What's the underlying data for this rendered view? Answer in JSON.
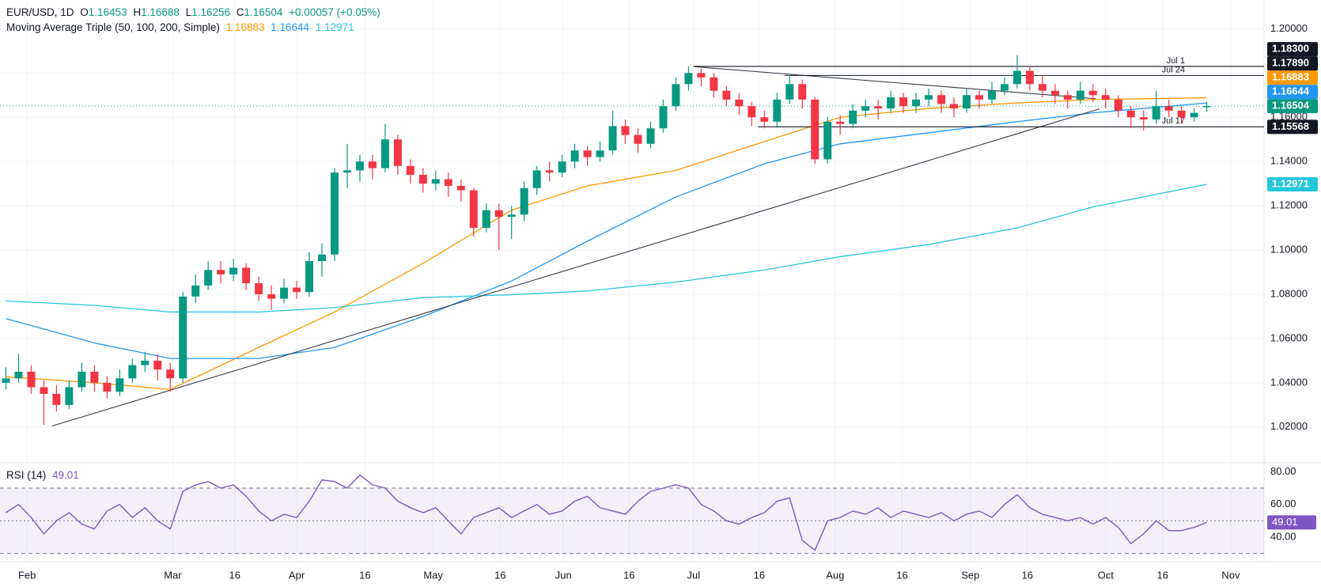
{
  "chart_data": {
    "type": "candlestick",
    "header": {
      "symbol": "EUR/USD, 1D",
      "o": "O",
      "h": "H",
      "l": "L",
      "c": "C",
      "change": "+0.00057 (+0.05%)"
    },
    "up_color": "#089981",
    "down_color": "#f23645",
    "ohlc": [
      [
        1.04,
        1.047,
        1.037,
        1.042
      ],
      [
        1.042,
        1.053,
        1.04,
        1.045
      ],
      [
        1.045,
        1.048,
        1.035,
        1.038
      ],
      [
        1.038,
        1.041,
        1.021,
        1.035
      ],
      [
        1.035,
        1.039,
        1.027,
        1.03
      ],
      [
        1.03,
        1.041,
        1.028,
        1.038
      ],
      [
        1.038,
        1.049,
        1.036,
        1.045
      ],
      [
        1.045,
        1.048,
        1.036,
        1.04
      ],
      [
        1.04,
        1.043,
        1.033,
        1.036
      ],
      [
        1.036,
        1.046,
        1.034,
        1.042
      ],
      [
        1.042,
        1.051,
        1.04,
        1.048
      ],
      [
        1.048,
        1.054,
        1.045,
        1.05
      ],
      [
        1.05,
        1.053,
        1.041,
        1.046
      ],
      [
        1.046,
        1.049,
        1.036,
        1.042
      ],
      [
        1.042,
        1.081,
        1.04,
        1.079
      ],
      [
        1.079,
        1.089,
        1.076,
        1.084
      ],
      [
        1.084,
        1.095,
        1.082,
        1.091
      ],
      [
        1.091,
        1.095,
        1.085,
        1.089
      ],
      [
        1.089,
        1.096,
        1.086,
        1.092
      ],
      [
        1.092,
        1.094,
        1.082,
        1.085
      ],
      [
        1.085,
        1.088,
        1.077,
        1.08
      ],
      [
        1.08,
        1.084,
        1.073,
        1.078
      ],
      [
        1.078,
        1.087,
        1.076,
        1.083
      ],
      [
        1.083,
        1.086,
        1.078,
        1.081
      ],
      [
        1.081,
        1.099,
        1.079,
        1.095
      ],
      [
        1.095,
        1.103,
        1.088,
        1.098
      ],
      [
        1.098,
        1.137,
        1.095,
        1.135
      ],
      [
        1.135,
        1.148,
        1.128,
        1.136
      ],
      [
        1.136,
        1.143,
        1.131,
        1.14
      ],
      [
        1.14,
        1.143,
        1.132,
        1.137
      ],
      [
        1.137,
        1.157,
        1.135,
        1.15
      ],
      [
        1.15,
        1.152,
        1.134,
        1.138
      ],
      [
        1.138,
        1.141,
        1.13,
        1.134
      ],
      [
        1.134,
        1.137,
        1.126,
        1.13
      ],
      [
        1.13,
        1.136,
        1.127,
        1.132
      ],
      [
        1.132,
        1.135,
        1.124,
        1.129
      ],
      [
        1.129,
        1.132,
        1.122,
        1.127
      ],
      [
        1.127,
        1.128,
        1.106,
        1.11
      ],
      [
        1.11,
        1.121,
        1.108,
        1.118
      ],
      [
        1.118,
        1.121,
        1.1,
        1.115
      ],
      [
        1.115,
        1.12,
        1.105,
        1.116
      ],
      [
        1.116,
        1.131,
        1.113,
        1.128
      ],
      [
        1.128,
        1.138,
        1.125,
        1.136
      ],
      [
        1.136,
        1.14,
        1.131,
        1.135
      ],
      [
        1.135,
        1.143,
        1.133,
        1.14
      ],
      [
        1.14,
        1.148,
        1.137,
        1.145
      ],
      [
        1.145,
        1.147,
        1.138,
        1.142
      ],
      [
        1.142,
        1.149,
        1.14,
        1.145
      ],
      [
        1.145,
        1.163,
        1.143,
        1.156
      ],
      [
        1.156,
        1.159,
        1.148,
        1.152
      ],
      [
        1.152,
        1.155,
        1.144,
        1.148
      ],
      [
        1.148,
        1.158,
        1.146,
        1.155
      ],
      [
        1.155,
        1.168,
        1.153,
        1.165
      ],
      [
        1.165,
        1.178,
        1.163,
        1.175
      ],
      [
        1.175,
        1.183,
        1.172,
        1.18
      ],
      [
        1.18,
        1.182,
        1.174,
        1.178
      ],
      [
        1.178,
        1.18,
        1.169,
        1.172
      ],
      [
        1.172,
        1.174,
        1.165,
        1.168
      ],
      [
        1.168,
        1.171,
        1.161,
        1.165
      ],
      [
        1.165,
        1.167,
        1.156,
        1.16
      ],
      [
        1.16,
        1.163,
        1.155,
        1.158
      ],
      [
        1.158,
        1.171,
        1.156,
        1.168
      ],
      [
        1.168,
        1.179,
        1.166,
        1.175
      ],
      [
        1.175,
        1.177,
        1.164,
        1.168
      ],
      [
        1.168,
        1.169,
        1.139,
        1.141
      ],
      [
        1.141,
        1.16,
        1.139,
        1.158
      ],
      [
        1.158,
        1.161,
        1.152,
        1.157
      ],
      [
        1.157,
        1.166,
        1.155,
        1.163
      ],
      [
        1.163,
        1.168,
        1.16,
        1.165
      ],
      [
        1.165,
        1.168,
        1.159,
        1.164
      ],
      [
        1.164,
        1.172,
        1.162,
        1.169
      ],
      [
        1.169,
        1.171,
        1.162,
        1.165
      ],
      [
        1.165,
        1.171,
        1.162,
        1.168
      ],
      [
        1.168,
        1.173,
        1.165,
        1.17
      ],
      [
        1.17,
        1.172,
        1.162,
        1.166
      ],
      [
        1.166,
        1.169,
        1.16,
        1.164
      ],
      [
        1.164,
        1.173,
        1.162,
        1.17
      ],
      [
        1.17,
        1.172,
        1.164,
        1.168
      ],
      [
        1.168,
        1.176,
        1.166,
        1.172
      ],
      [
        1.172,
        1.178,
        1.17,
        1.175
      ],
      [
        1.175,
        1.188,
        1.173,
        1.181
      ],
      [
        1.181,
        1.183,
        1.172,
        1.175
      ],
      [
        1.175,
        1.179,
        1.169,
        1.172
      ],
      [
        1.172,
        1.175,
        1.166,
        1.17
      ],
      [
        1.17,
        1.172,
        1.164,
        1.168
      ],
      [
        1.168,
        1.176,
        1.166,
        1.172
      ],
      [
        1.172,
        1.175,
        1.167,
        1.17
      ],
      [
        1.17,
        1.173,
        1.164,
        1.168
      ],
      [
        1.168,
        1.17,
        1.16,
        1.163
      ],
      [
        1.163,
        1.165,
        1.155,
        1.16
      ],
      [
        1.16,
        1.163,
        1.154,
        1.159
      ],
      [
        1.159,
        1.172,
        1.157,
        1.165
      ],
      [
        1.165,
        1.168,
        1.16,
        1.163
      ],
      [
        1.163,
        1.165,
        1.157,
        1.16
      ],
      [
        1.16,
        1.164,
        1.158,
        1.162
      ],
      [
        1.16453,
        1.16688,
        1.16256,
        1.16504
      ]
    ],
    "xlim": [
      -0.47,
      99.53
    ],
    "xticks": [
      {
        "value": 1.67,
        "label": "Feb"
      },
      {
        "value": 13.2,
        "label": "Mar"
      },
      {
        "value": 18.1,
        "label": "16"
      },
      {
        "value": 23,
        "label": "Apr"
      },
      {
        "value": 28.4,
        "label": "16"
      },
      {
        "value": 33.8,
        "label": "May"
      },
      {
        "value": 39.1,
        "label": "16"
      },
      {
        "value": 44.1,
        "label": "Jun"
      },
      {
        "value": 49.3,
        "label": "16"
      },
      {
        "value": 54.4,
        "label": "Jul"
      },
      {
        "value": 59.6,
        "label": "16"
      },
      {
        "value": 65.6,
        "label": "Aug"
      },
      {
        "value": 70.9,
        "label": "16"
      },
      {
        "value": 76.3,
        "label": "Sep"
      },
      {
        "value": 80.8,
        "label": "16"
      },
      {
        "value": 87,
        "label": "Oct"
      },
      {
        "value": 91.5,
        "label": "16"
      },
      {
        "value": 96.9,
        "label": "Nov"
      }
    ],
    "ylim": [
      1.0042,
      1.213
    ],
    "yticks": [
      {
        "value": 1.02,
        "label": "1.02000"
      },
      {
        "value": 1.04,
        "label": "1.04000"
      },
      {
        "value": 1.06,
        "label": "1.06000"
      },
      {
        "value": 1.08,
        "label": "1.08000"
      },
      {
        "value": 1.1,
        "label": "1.10000"
      },
      {
        "value": 1.12,
        "label": "1.12000"
      },
      {
        "value": 1.14,
        "label": "1.14000"
      },
      {
        "value": 1.16,
        "label": "1.16000"
      },
      {
        "value": 1.18,
        "label": "1.18000"
      },
      {
        "value": 1.2,
        "label": "1.20000"
      }
    ],
    "grid": true,
    "moving_averages": {
      "title": "Moving Average Triple (50, 100, 200, Simple)",
      "series": [
        {
          "color": "#ff9800",
          "x": [
            0,
            7,
            13,
            20,
            26,
            33,
            40,
            46,
            53,
            60,
            66,
            73,
            80,
            86,
            95
          ],
          "values": [
            1.0427,
            1.04,
            1.037,
            1.056,
            1.072,
            1.094,
            1.118,
            1.129,
            1.136,
            1.149,
            1.16,
            1.164,
            1.1665,
            1.168,
            1.16883
          ]
        },
        {
          "color": "#2196f3",
          "x": [
            0,
            7,
            13,
            20,
            26,
            33,
            40,
            46,
            53,
            60,
            66,
            73,
            80,
            86,
            95
          ],
          "values": [
            1.069,
            1.058,
            1.051,
            1.051,
            1.056,
            1.07,
            1.086,
            1.104,
            1.124,
            1.139,
            1.148,
            1.153,
            1.158,
            1.162,
            1.16644
          ]
        },
        {
          "color": "#26c6da",
          "x": [
            0,
            7,
            13,
            20,
            26,
            33,
            40,
            46,
            53,
            60,
            66,
            73,
            80,
            86,
            95
          ],
          "values": [
            1.077,
            1.075,
            1.072,
            1.072,
            1.074,
            1.0785,
            1.0798,
            1.0815,
            1.0855,
            1.091,
            1.097,
            1.1025,
            1.11,
            1.1195,
            1.12971
          ]
        }
      ]
    },
    "trendlines": [
      {
        "color": "#363a45",
        "x": [
          3.67,
          86.5
        ],
        "y": [
          1.0205,
          1.1638
        ]
      },
      {
        "color": "#363a45",
        "x": [
          54.4,
          86.2
        ],
        "y": [
          1.1829,
          1.1684
        ]
      }
    ],
    "levels": [
      {
        "name": "Jul 1",
        "x": 54.4,
        "value": 1.183,
        "label": "1.18300"
      },
      {
        "name": "Jul 24",
        "x": 61.6,
        "value": 1.1789,
        "label": "1.17890"
      },
      {
        "name": "Jul 17",
        "x": 59.5,
        "value": 1.15568,
        "label": "1.15568"
      }
    ],
    "last_price_line": true,
    "rsi": {
      "title": "RSI (14)",
      "color": "#7e57c2",
      "ylim": [
        25,
        85
      ],
      "yticks": [
        {
          "value": 40,
          "label": "40.00"
        },
        {
          "value": 60,
          "label": "60.00"
        },
        {
          "value": 80,
          "label": "80.00"
        }
      ],
      "bands": [
        30,
        70
      ],
      "midline": 50,
      "values": [
        55,
        60,
        52,
        42,
        50,
        55,
        48,
        45,
        56,
        60,
        52,
        58,
        50,
        45,
        68,
        72,
        74,
        70,
        72,
        65,
        56,
        50,
        54,
        52,
        62,
        75,
        74,
        70,
        78,
        72,
        70,
        62,
        58,
        55,
        58,
        50,
        42,
        52,
        55,
        58,
        52,
        56,
        60,
        54,
        56,
        62,
        65,
        58,
        56,
        54,
        62,
        68,
        70,
        72,
        70,
        60,
        56,
        50,
        48,
        52,
        55,
        62,
        64,
        38,
        32,
        50,
        52,
        56,
        54,
        58,
        52,
        56,
        54,
        52,
        55,
        50,
        54,
        56,
        52,
        60,
        66,
        58,
        54,
        52,
        50,
        52,
        48,
        52,
        46,
        36,
        42,
        50,
        44,
        44,
        46,
        49.01
      ]
    }
  }
}
